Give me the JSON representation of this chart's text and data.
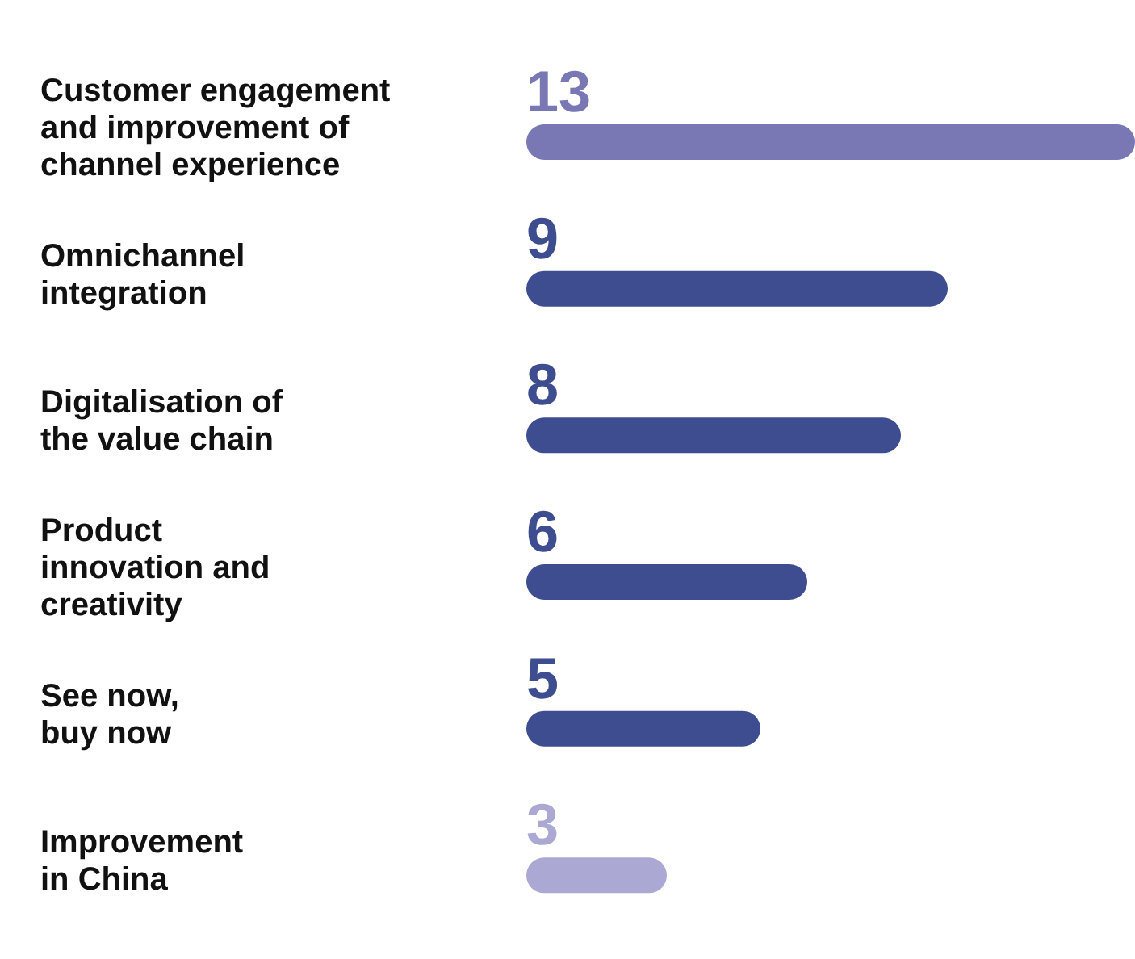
{
  "chart_data": {
    "type": "bar",
    "orientation": "horizontal",
    "categories": [
      "Customer engagement\nand improvement of\nchannel experience",
      "Omnichannel\nintegration",
      "Digitalisation of\nthe value chain",
      "Product\ninnovation and\ncreativity",
      "See now,\nbuy now",
      "Improvement\nin China"
    ],
    "values": [
      13,
      9,
      8,
      6,
      5,
      3
    ],
    "colors": [
      "#7a78b4",
      "#3e4d8f",
      "#3e4d8f",
      "#3e4d8f",
      "#3e4d8f",
      "#aba8d3"
    ],
    "data_labels": true,
    "tick_labels": "y"
  }
}
